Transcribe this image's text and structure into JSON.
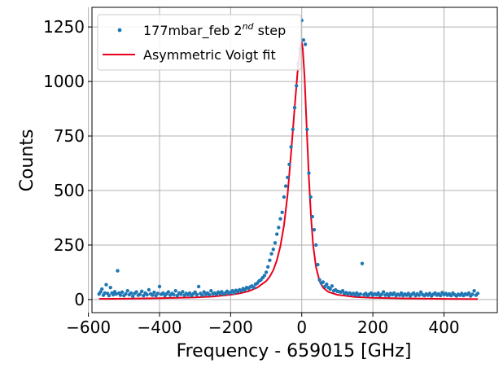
{
  "chart_data": {
    "type": "scatter",
    "xlabel": "Frequency - 659015 [GHz]",
    "ylabel": "Counts",
    "xlim": [
      -590,
      550
    ],
    "ylim": [
      -60,
      1340
    ],
    "xticks": [
      -600,
      -400,
      -200,
      0,
      200,
      400
    ],
    "yticks": [
      0,
      250,
      500,
      750,
      1000,
      1250
    ],
    "xtick_labels": [
      "−600",
      "−400",
      "−200",
      "0",
      "200",
      "400"
    ],
    "ytick_labels": [
      "0",
      "250",
      "500",
      "750",
      "1000",
      "1250"
    ],
    "grid": true,
    "legend_position": "top-left",
    "series": [
      {
        "name": "177mbar_feb 2nd step",
        "name_main": "177mbar_feb 2",
        "name_sup": "nd",
        "name_tail": " step",
        "kind": "points",
        "color": "#1f77b4",
        "points": [
          [
            -570,
            25
          ],
          [
            -566,
            35
          ],
          [
            -562,
            48
          ],
          [
            -558,
            20
          ],
          [
            -554,
            30
          ],
          [
            -550,
            68
          ],
          [
            -546,
            28
          ],
          [
            -542,
            18
          ],
          [
            -538,
            55
          ],
          [
            -534,
            30
          ],
          [
            -530,
            22
          ],
          [
            -526,
            36
          ],
          [
            -522,
            25
          ],
          [
            -518,
            132
          ],
          [
            -514,
            30
          ],
          [
            -510,
            20
          ],
          [
            -505,
            34
          ],
          [
            -500,
            18
          ],
          [
            -495,
            26
          ],
          [
            -490,
            40
          ],
          [
            -485,
            22
          ],
          [
            -480,
            30
          ],
          [
            -475,
            15
          ],
          [
            -470,
            28
          ],
          [
            -465,
            35
          ],
          [
            -460,
            20
          ],
          [
            -455,
            24
          ],
          [
            -450,
            38
          ],
          [
            -445,
            18
          ],
          [
            -440,
            30
          ],
          [
            -435,
            22
          ],
          [
            -430,
            45
          ],
          [
            -425,
            26
          ],
          [
            -420,
            20
          ],
          [
            -415,
            33
          ],
          [
            -410,
            18
          ],
          [
            -405,
            28
          ],
          [
            -400,
            60
          ],
          [
            -395,
            24
          ],
          [
            -390,
            30
          ],
          [
            -385,
            18
          ],
          [
            -380,
            26
          ],
          [
            -375,
            35
          ],
          [
            -370,
            20
          ],
          [
            -365,
            28
          ],
          [
            -360,
            22
          ],
          [
            -355,
            40
          ],
          [
            -350,
            18
          ],
          [
            -345,
            30
          ],
          [
            -340,
            24
          ],
          [
            -335,
            36
          ],
          [
            -330,
            20
          ],
          [
            -325,
            28
          ],
          [
            -320,
            22
          ],
          [
            -315,
            30
          ],
          [
            -310,
            18
          ],
          [
            -305,
            26
          ],
          [
            -300,
            34
          ],
          [
            -295,
            22
          ],
          [
            -290,
            60
          ],
          [
            -285,
            28
          ],
          [
            -280,
            20
          ],
          [
            -275,
            35
          ],
          [
            -270,
            24
          ],
          [
            -265,
            30
          ],
          [
            -260,
            22
          ],
          [
            -255,
            40
          ],
          [
            -250,
            26
          ],
          [
            -245,
            30
          ],
          [
            -240,
            24
          ],
          [
            -235,
            34
          ],
          [
            -230,
            28
          ],
          [
            -225,
            36
          ],
          [
            -220,
            25
          ],
          [
            -215,
            30
          ],
          [
            -210,
            38
          ],
          [
            -205,
            28
          ],
          [
            -200,
            34
          ],
          [
            -195,
            40
          ],
          [
            -190,
            30
          ],
          [
            -185,
            42
          ],
          [
            -180,
            36
          ],
          [
            -175,
            45
          ],
          [
            -170,
            40
          ],
          [
            -165,
            50
          ],
          [
            -160,
            44
          ],
          [
            -155,
            55
          ],
          [
            -150,
            50
          ],
          [
            -145,
            58
          ],
          [
            -140,
            62
          ],
          [
            -135,
            55
          ],
          [
            -130,
            70
          ],
          [
            -125,
            75
          ],
          [
            -120,
            85
          ],
          [
            -115,
            90
          ],
          [
            -110,
            100
          ],
          [
            -105,
            110
          ],
          [
            -100,
            125
          ],
          [
            -95,
            150
          ],
          [
            -90,
            180
          ],
          [
            -85,
            210
          ],
          [
            -80,
            230
          ],
          [
            -75,
            260
          ],
          [
            -70,
            300
          ],
          [
            -65,
            330
          ],
          [
            -60,
            370
          ],
          [
            -55,
            400
          ],
          [
            -50,
            470
          ],
          [
            -45,
            520
          ],
          [
            -40,
            560
          ],
          [
            -35,
            620
          ],
          [
            -30,
            700
          ],
          [
            -25,
            780
          ],
          [
            -20,
            880
          ],
          [
            -15,
            980
          ],
          [
            -10,
            1080
          ],
          [
            -5,
            1150
          ],
          [
            0,
            1280
          ],
          [
            5,
            1190
          ],
          [
            10,
            1170
          ],
          [
            15,
            780
          ],
          [
            20,
            580
          ],
          [
            25,
            470
          ],
          [
            30,
            380
          ],
          [
            35,
            320
          ],
          [
            40,
            250
          ],
          [
            45,
            160
          ],
          [
            50,
            90
          ],
          [
            55,
            75
          ],
          [
            60,
            80
          ],
          [
            65,
            60
          ],
          [
            70,
            70
          ],
          [
            75,
            55
          ],
          [
            80,
            48
          ],
          [
            85,
            62
          ],
          [
            90,
            40
          ],
          [
            95,
            44
          ],
          [
            100,
            38
          ],
          [
            105,
            36
          ],
          [
            110,
            34
          ],
          [
            115,
            40
          ],
          [
            120,
            28
          ],
          [
            125,
            32
          ],
          [
            130,
            26
          ],
          [
            135,
            30
          ],
          [
            140,
            24
          ],
          [
            145,
            28
          ],
          [
            150,
            22
          ],
          [
            155,
            30
          ],
          [
            160,
            20
          ],
          [
            165,
            25
          ],
          [
            170,
            165
          ],
          [
            175,
            22
          ],
          [
            180,
            28
          ],
          [
            185,
            18
          ],
          [
            190,
            24
          ],
          [
            195,
            30
          ],
          [
            200,
            20
          ],
          [
            205,
            26
          ],
          [
            210,
            22
          ],
          [
            215,
            30
          ],
          [
            220,
            18
          ],
          [
            225,
            24
          ],
          [
            230,
            35
          ],
          [
            235,
            20
          ],
          [
            240,
            26
          ],
          [
            245,
            18
          ],
          [
            250,
            28
          ],
          [
            255,
            22
          ],
          [
            260,
            30
          ],
          [
            265,
            18
          ],
          [
            270,
            24
          ],
          [
            275,
            20
          ],
          [
            280,
            30
          ],
          [
            285,
            18
          ],
          [
            290,
            25
          ],
          [
            295,
            20
          ],
          [
            300,
            28
          ],
          [
            305,
            16
          ],
          [
            310,
            24
          ],
          [
            315,
            30
          ],
          [
            320,
            18
          ],
          [
            325,
            26
          ],
          [
            330,
            20
          ],
          [
            335,
            34
          ],
          [
            340,
            22
          ],
          [
            345,
            18
          ],
          [
            350,
            26
          ],
          [
            355,
            20
          ],
          [
            360,
            28
          ],
          [
            365,
            16
          ],
          [
            370,
            24
          ],
          [
            375,
            30
          ],
          [
            380,
            20
          ],
          [
            385,
            26
          ],
          [
            390,
            18
          ],
          [
            395,
            32
          ],
          [
            400,
            22
          ],
          [
            405,
            28
          ],
          [
            410,
            20
          ],
          [
            415,
            26
          ],
          [
            420,
            18
          ],
          [
            425,
            30
          ],
          [
            430,
            22
          ],
          [
            435,
            16
          ],
          [
            440,
            24
          ],
          [
            445,
            20
          ],
          [
            450,
            28
          ],
          [
            455,
            18
          ],
          [
            460,
            26
          ],
          [
            465,
            22
          ],
          [
            470,
            30
          ],
          [
            475,
            16
          ],
          [
            480,
            24
          ],
          [
            485,
            40
          ],
          [
            490,
            20
          ],
          [
            495,
            28
          ]
        ]
      },
      {
        "name": "Asymmetric Voigt fit",
        "kind": "line",
        "color": "#e8001a",
        "points": [
          [
            -570,
            3
          ],
          [
            -500,
            4
          ],
          [
            -400,
            6
          ],
          [
            -300,
            10
          ],
          [
            -250,
            14
          ],
          [
            -200,
            22
          ],
          [
            -175,
            28
          ],
          [
            -150,
            38
          ],
          [
            -125,
            55
          ],
          [
            -100,
            85
          ],
          [
            -90,
            105
          ],
          [
            -80,
            135
          ],
          [
            -70,
            180
          ],
          [
            -60,
            245
          ],
          [
            -50,
            340
          ],
          [
            -40,
            480
          ],
          [
            -30,
            670
          ],
          [
            -20,
            880
          ],
          [
            -12,
            1040
          ],
          [
            -6,
            1130
          ],
          [
            -2,
            1170
          ],
          [
            0,
            1180
          ],
          [
            3,
            1150
          ],
          [
            8,
            1020
          ],
          [
            14,
            780
          ],
          [
            20,
            560
          ],
          [
            26,
            380
          ],
          [
            32,
            250
          ],
          [
            40,
            150
          ],
          [
            50,
            85
          ],
          [
            60,
            55
          ],
          [
            75,
            35
          ],
          [
            100,
            22
          ],
          [
            150,
            12
          ],
          [
            200,
            8
          ],
          [
            300,
            5
          ],
          [
            400,
            3
          ],
          [
            495,
            2
          ]
        ]
      }
    ]
  }
}
